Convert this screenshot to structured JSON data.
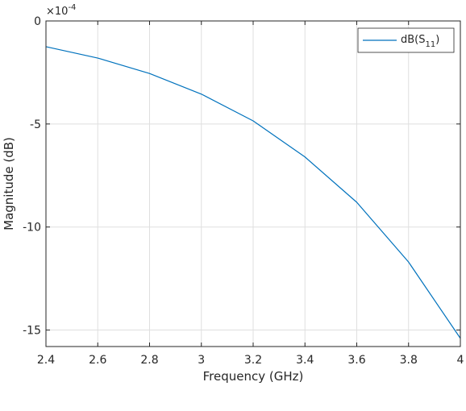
{
  "chart_data": {
    "type": "line",
    "xlabel": "Frequency (GHz)",
    "ylabel": "Magnitude (dB)",
    "y_exponent_label": "×10",
    "y_exponent_power": "-4",
    "xlim": [
      2.4,
      4.0
    ],
    "ylim": [
      -15.8,
      0
    ],
    "grid": true,
    "legend_placement": "top-right",
    "x_ticks": [
      2.4,
      2.6,
      2.8,
      3.0,
      3.2,
      3.4,
      3.6,
      3.8,
      4.0
    ],
    "x_tick_labels": [
      "2.4",
      "2.6",
      "2.8",
      "3",
      "3.2",
      "3.4",
      "3.6",
      "3.8",
      "4"
    ],
    "y_ticks": [
      0,
      -5,
      -10,
      -15
    ],
    "y_tick_labels": [
      "0",
      "-5",
      "-10",
      "-15"
    ],
    "series": [
      {
        "name_main": "dB(S",
        "name_sub": "11",
        "name_end": ")",
        "color": "#0072BD",
        "x": [
          2.4,
          2.6,
          2.8,
          3.0,
          3.2,
          3.4,
          3.6,
          3.8,
          4.0
        ],
        "y": [
          -1.25,
          -1.8,
          -2.55,
          -3.55,
          -4.85,
          -6.6,
          -8.8,
          -11.7,
          -15.4
        ]
      }
    ]
  }
}
